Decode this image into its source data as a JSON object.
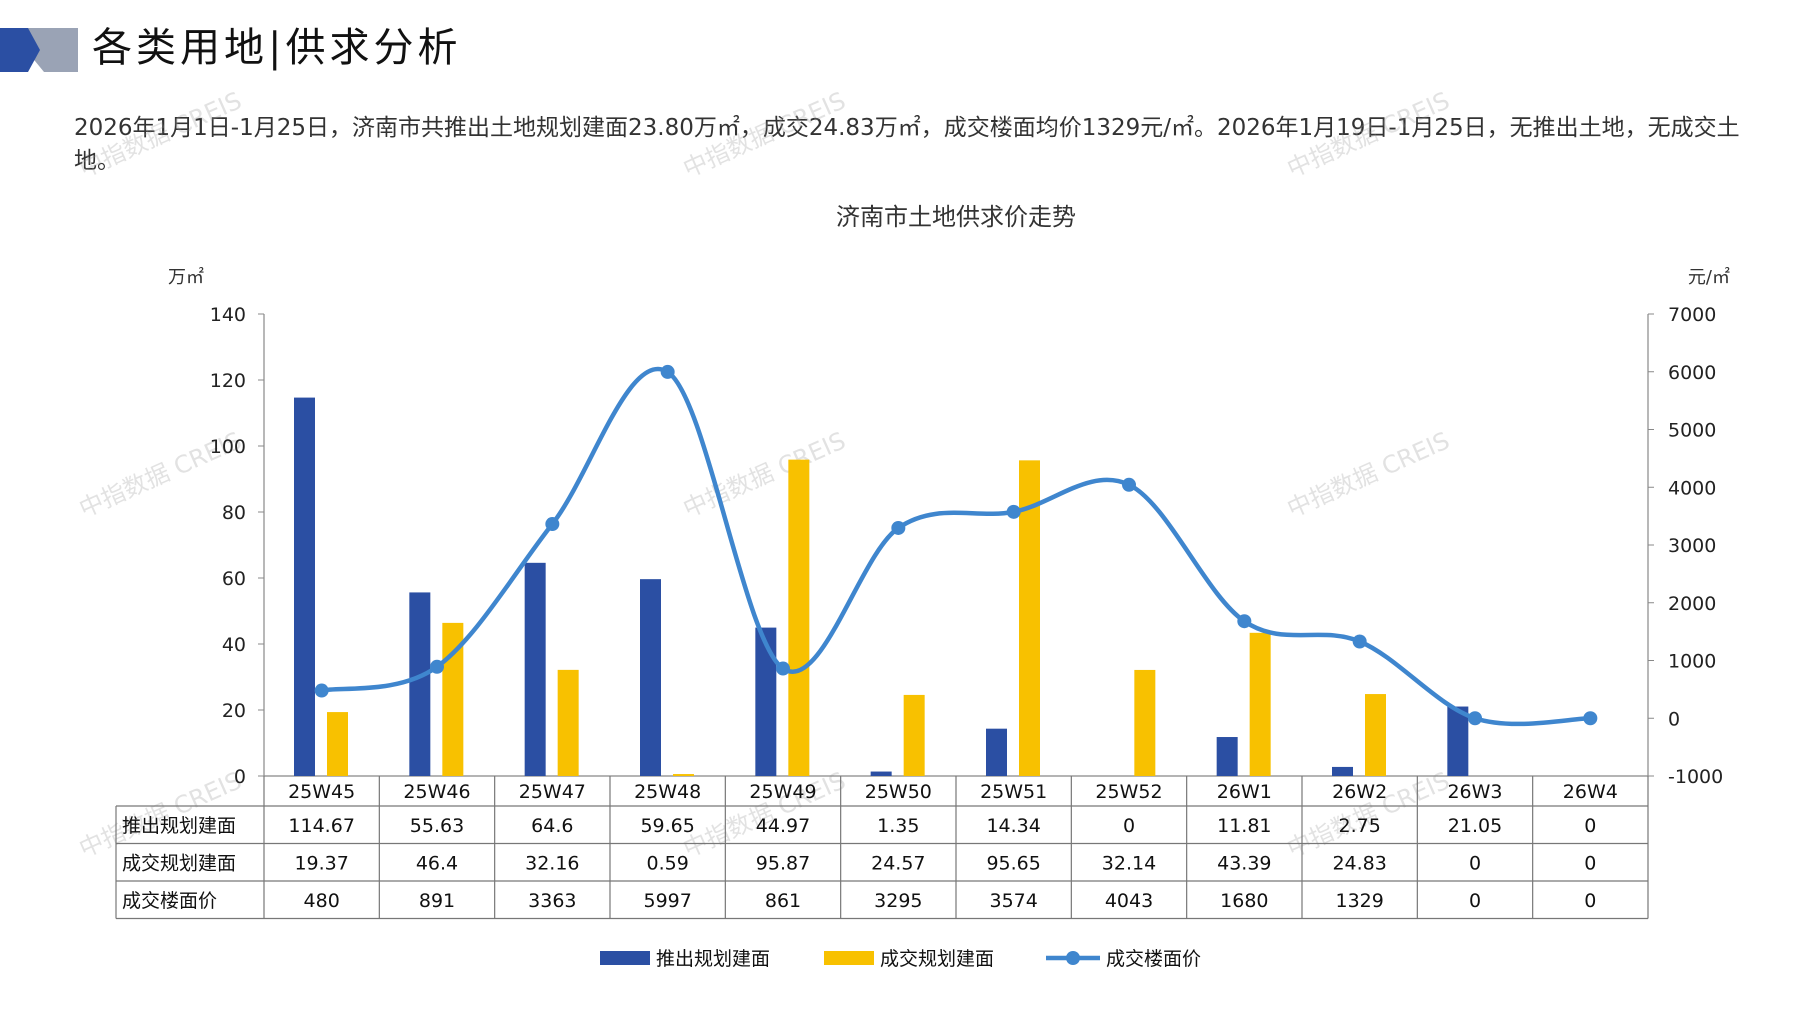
{
  "page": {
    "title": "各类用地|供求分析",
    "summary": "2026年1月1日-1月25日，济南市共推出土地规划建面23.80万㎡，成交24.83万㎡，成交楼面均价1329元/㎡。2026年1月19日-1月25日，无推出土地，无成交土地。",
    "watermark": "中指数据 CREIS"
  },
  "colors": {
    "supply": "#2B4FA3",
    "deal": "#F8C100",
    "price": "#3F86CE",
    "deco_dark": "#2B4FA3",
    "deco_light": "#9AA3B5"
  },
  "chart_data": {
    "type": "bar",
    "title": "济南市土地供求价走势",
    "ylabel_left": "万㎡",
    "ylabel_right": "元/㎡",
    "ylim_left": [
      0,
      140
    ],
    "ylim_right": [
      -1000,
      7000
    ],
    "yticks_left": [
      0,
      20,
      40,
      60,
      80,
      100,
      120,
      140
    ],
    "yticks_right": [
      -1000,
      0,
      1000,
      2000,
      3000,
      4000,
      5000,
      6000,
      7000
    ],
    "categories": [
      "25W45",
      "25W46",
      "25W47",
      "25W48",
      "25W49",
      "25W50",
      "25W51",
      "25W52",
      "26W1",
      "26W2",
      "26W3",
      "26W4"
    ],
    "series": [
      {
        "name": "推出规划建面",
        "type": "bar",
        "axis": "left",
        "values": [
          114.67,
          55.63,
          64.6,
          59.65,
          44.97,
          1.35,
          14.34,
          0,
          11.81,
          2.75,
          21.05,
          0
        ],
        "display": [
          "114.67",
          "55.63",
          "64.6",
          "59.65",
          "44.97",
          "1.35",
          "14.34",
          "0",
          "11.81",
          "2.75",
          "21.05",
          "0"
        ]
      },
      {
        "name": "成交规划建面",
        "type": "bar",
        "axis": "left",
        "values": [
          19.37,
          46.4,
          32.16,
          0.59,
          95.87,
          24.57,
          95.65,
          32.14,
          43.39,
          24.83,
          0,
          0
        ],
        "display": [
          "19.37",
          "46.4",
          "32.16",
          "0.59",
          "95.87",
          "24.57",
          "95.65",
          "32.14",
          "43.39",
          "24.83",
          "0",
          "0"
        ]
      },
      {
        "name": "成交楼面价",
        "type": "line",
        "axis": "right",
        "values": [
          480,
          891,
          3363,
          5997,
          861,
          3295,
          3574,
          4043,
          1680,
          1329,
          0,
          0
        ],
        "display": [
          "480",
          "891",
          "3363",
          "5997",
          "861",
          "3295",
          "3574",
          "4043",
          "1680",
          "1329",
          "0",
          "0"
        ]
      }
    ],
    "table_rows": [
      "推出规划建面",
      "成交规划建面",
      "成交楼面价"
    ],
    "legend_position": "bottom",
    "grid": false
  }
}
